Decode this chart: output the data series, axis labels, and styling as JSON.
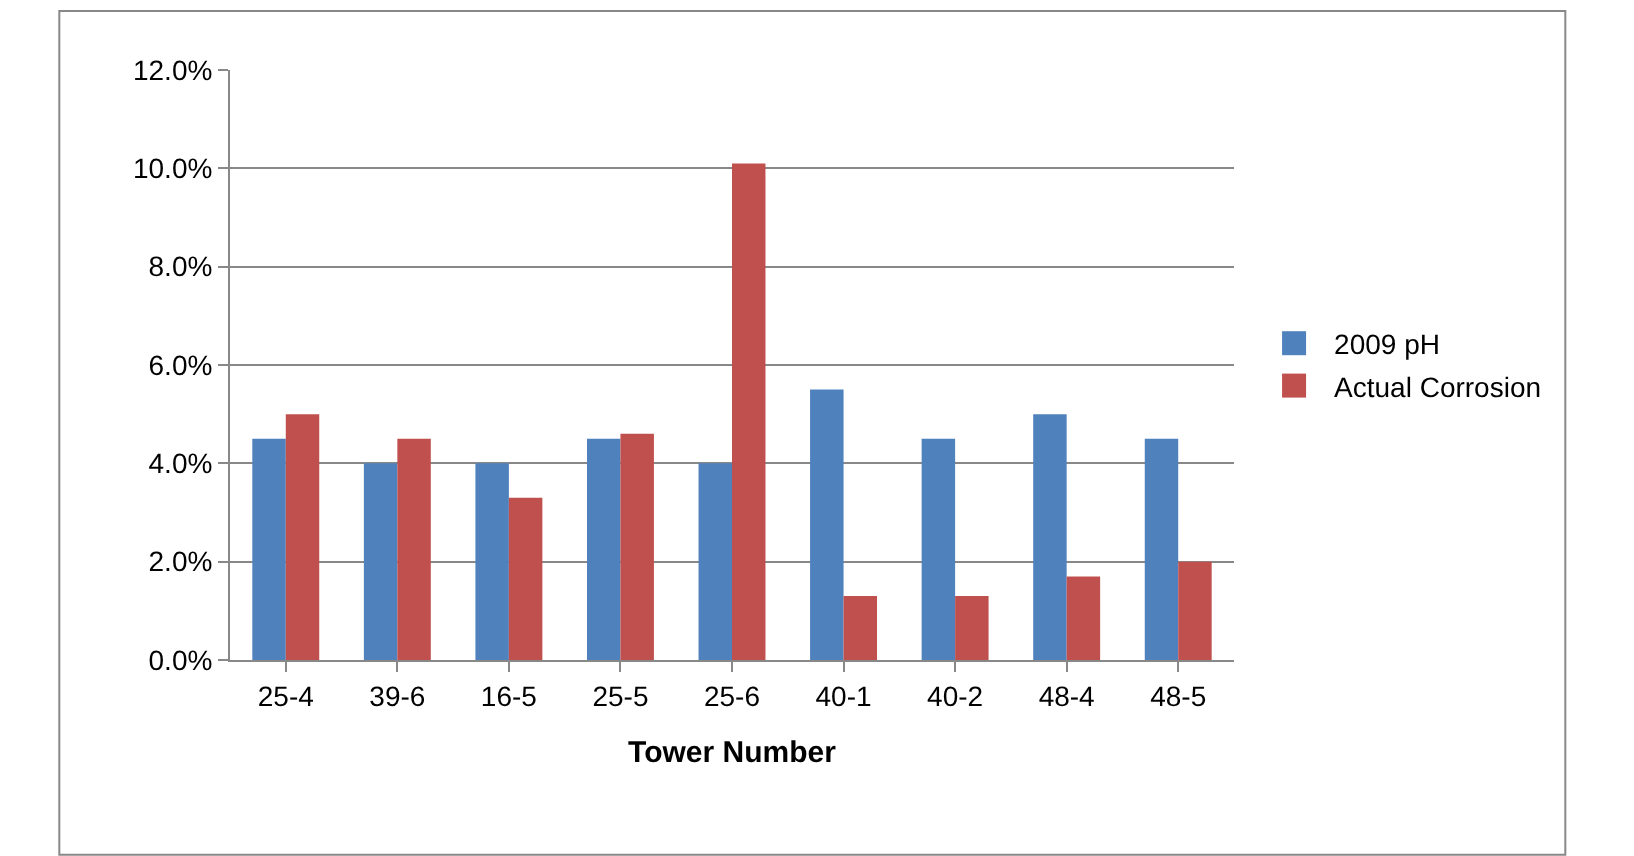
{
  "chart_data": {
    "type": "bar",
    "xlabel": "Tower Number",
    "categories": [
      "25-4",
      "39-6",
      "16-5",
      "25-5",
      "25-6",
      "40-1",
      "40-2",
      "48-4",
      "48-5"
    ],
    "series": [
      {
        "name": "2009 pH",
        "color": "#4f81bd",
        "values": [
          4.5,
          4.0,
          4.0,
          4.5,
          4.0,
          5.5,
          4.5,
          5.0,
          4.5
        ]
      },
      {
        "name": "Actual Corrosion",
        "color": "#c0504d",
        "values": [
          5.0,
          4.5,
          3.3,
          4.6,
          10.1,
          1.3,
          1.3,
          1.7,
          2.0
        ]
      }
    ],
    "ylim": [
      0,
      12
    ],
    "yticks": [
      {
        "value": 0,
        "label": "0.0%"
      },
      {
        "value": 2,
        "label": "2.0%"
      },
      {
        "value": 4,
        "label": "4.0%"
      },
      {
        "value": 6,
        "label": "6.0%"
      },
      {
        "value": 8,
        "label": "8.0%"
      },
      {
        "value": 10,
        "label": "10.0%"
      },
      {
        "value": 12,
        "label": "12.0%"
      }
    ],
    "grid": "y",
    "legend": "right"
  }
}
